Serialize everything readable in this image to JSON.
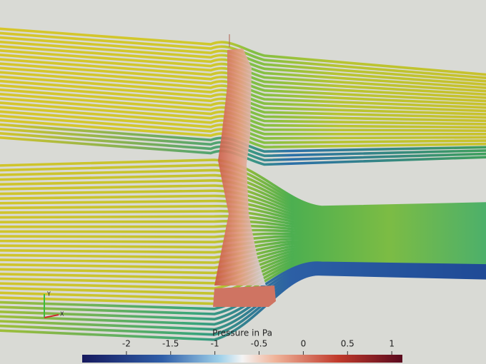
{
  "colorbar": {
    "title": "Pressure in Pa",
    "range": [
      -2.5,
      1.12
    ],
    "ticks": [
      -2,
      -1.5,
      -1,
      -0.5,
      0,
      0.5,
      1
    ]
  },
  "axes": {
    "labels": [
      "Y",
      "X"
    ]
  }
}
